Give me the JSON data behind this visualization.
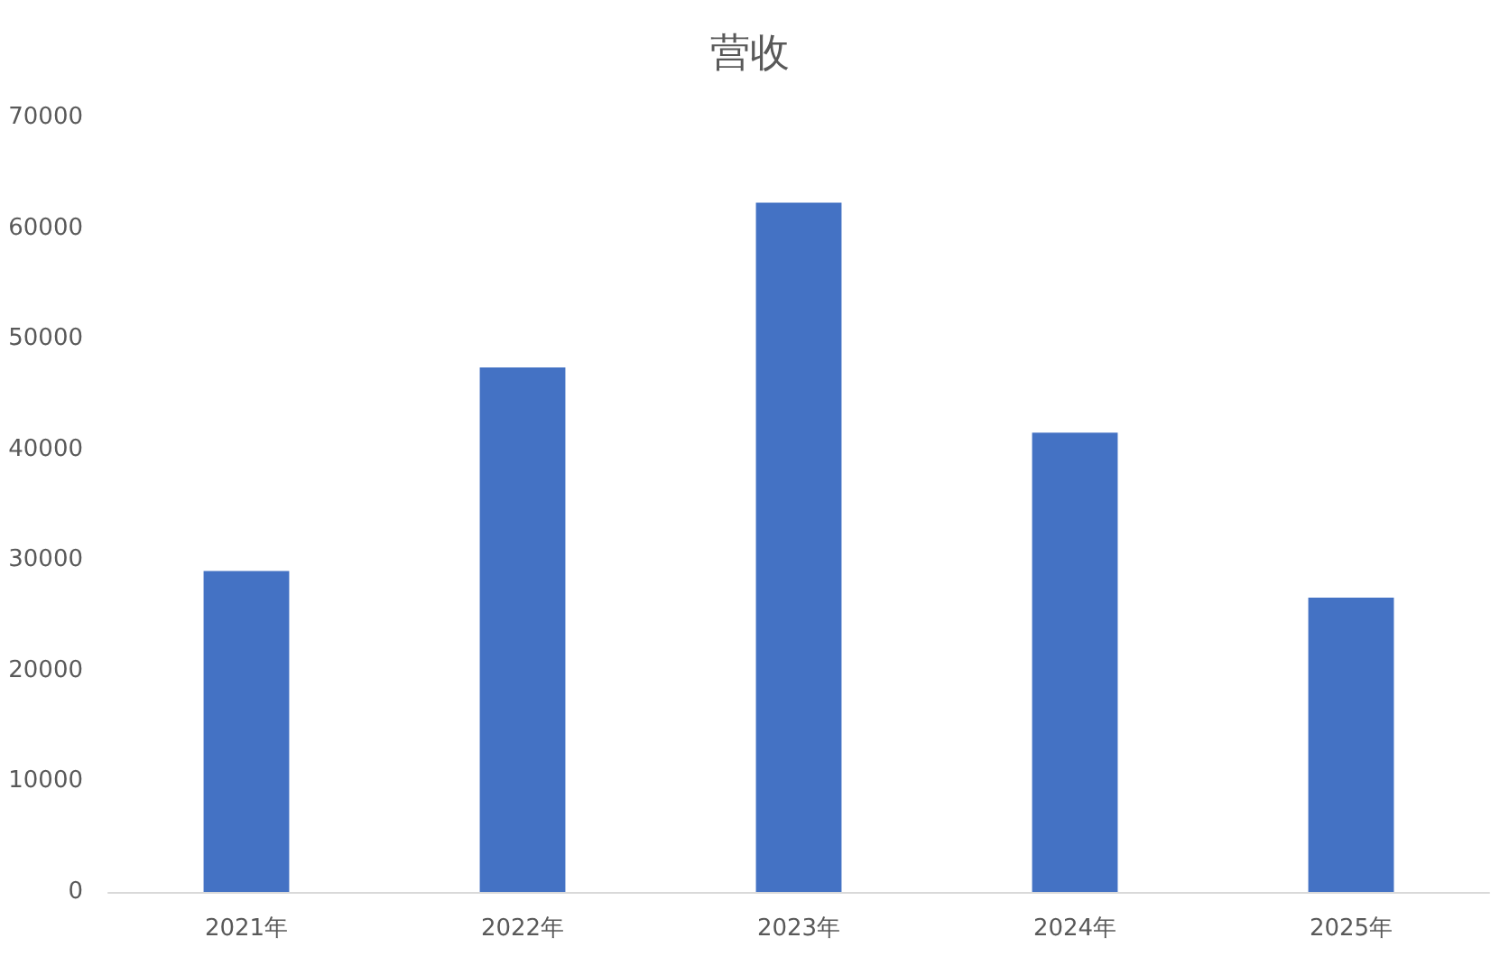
{
  "chart_data": {
    "type": "bar",
    "title": "营收",
    "categories": [
      "2021年",
      "2022年",
      "2023年",
      "2024年",
      "2025年"
    ],
    "values": [
      29000,
      47400,
      62300,
      41500,
      26600
    ],
    "color": "#4472c4",
    "ylim": [
      0,
      70000
    ],
    "yticks": [
      0,
      10000,
      20000,
      30000,
      40000,
      50000,
      60000,
      70000
    ],
    "grid": false
  }
}
